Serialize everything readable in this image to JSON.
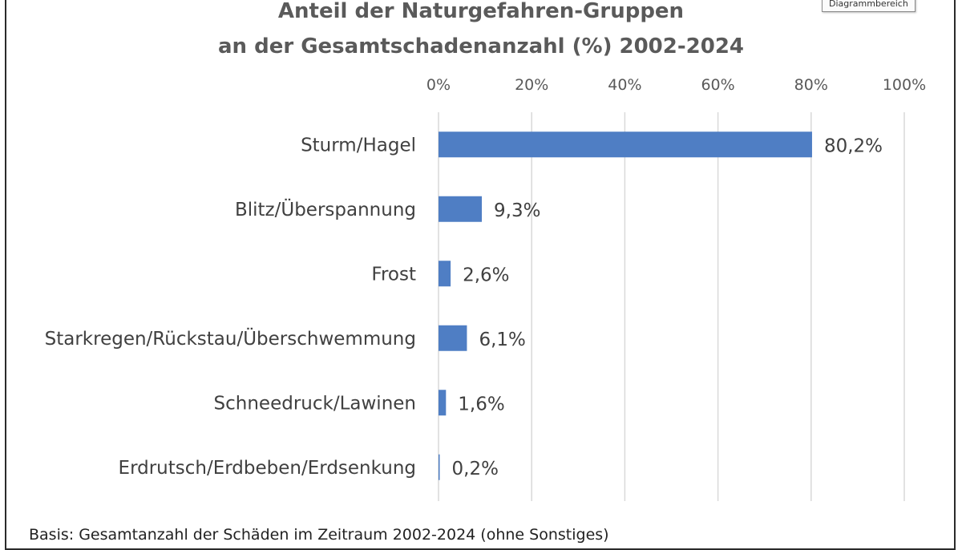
{
  "tooltip": "Diagrammbereich",
  "footnote": "Basis: Gesamtanzahl der Schäden im Zeitraum 2002-2024 (ohne Sonstiges)",
  "colors": {
    "bar": "#4f7ec4",
    "grid": "#d9d9d9",
    "text": "#404040",
    "title": "#5a5a5a"
  },
  "chart_data": {
    "type": "bar",
    "orientation": "horizontal",
    "title_lines": [
      "Anteil der Naturgefahren-Gruppen",
      "an der Gesamtschadenanzahl (%) 2002-2024"
    ],
    "categories": [
      "Sturm/Hagel",
      "Blitz/Überspannung",
      "Frost",
      "Starkregen/Rückstau/Überschwemmung",
      "Schneedruck/Lawinen",
      "Erdrutsch/Erdbeben/Erdsenkung"
    ],
    "values": [
      80.2,
      9.3,
      2.6,
      6.1,
      1.6,
      0.2
    ],
    "data_labels": [
      "80,2%",
      "9,3%",
      "2,6%",
      "6,1%",
      "1,6%",
      "0,2%"
    ],
    "x_ticks": [
      "0%",
      "20%",
      "40%",
      "60%",
      "80%",
      "100%"
    ],
    "xlim": [
      0,
      100
    ],
    "axis_position": "top",
    "grid": true,
    "legend": false
  }
}
